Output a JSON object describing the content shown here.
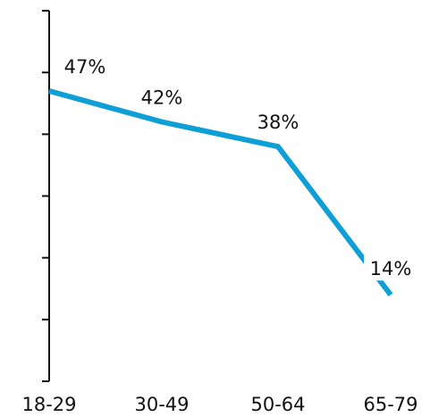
{
  "chart_data": {
    "type": "line",
    "categories": [
      "18-29",
      "30-49",
      "50-64",
      "65-79"
    ],
    "series": [
      {
        "values": [
          47,
          42,
          38,
          14
        ]
      }
    ],
    "data_labels": [
      "47%",
      "42%",
      "38%",
      "14%"
    ],
    "title": "",
    "xlabel": "",
    "ylabel": "",
    "ylim": [
      0,
      60
    ],
    "y_tick_count": 6,
    "grid": false,
    "line_color": "#0e9fd6"
  }
}
